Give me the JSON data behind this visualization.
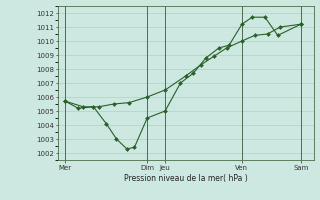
{
  "title": "Pression niveau de la mer( hPa )",
  "ylim": [
    1001.5,
    1012.5
  ],
  "yticks": [
    1002,
    1003,
    1004,
    1005,
    1006,
    1007,
    1008,
    1009,
    1010,
    1011,
    1012
  ],
  "bg_color": "#cce8e0",
  "grid_color": "#aaccbb",
  "line_color": "#2a5f2a",
  "xlim": [
    0,
    10
  ],
  "xtick_positions": [
    0.3,
    3.5,
    4.2,
    7.2,
    9.5
  ],
  "xtick_labels": [
    "Mer",
    "Dim",
    "Jeu",
    "Ven",
    "Sam"
  ],
  "vline_positions": [
    0.3,
    3.5,
    4.2,
    7.2,
    9.5
  ],
  "line1_x": [
    0.3,
    0.8,
    1.4,
    1.9,
    2.3,
    2.7,
    3.0,
    3.5,
    4.2,
    4.8,
    5.3,
    5.8,
    6.3,
    6.7,
    7.2,
    7.6,
    8.1,
    8.6,
    9.5
  ],
  "line1_y": [
    1005.7,
    1005.2,
    1005.3,
    1004.1,
    1003.0,
    1002.3,
    1002.4,
    1004.5,
    1005.0,
    1007.0,
    1007.7,
    1008.8,
    1009.5,
    1009.7,
    1011.2,
    1011.7,
    1011.7,
    1010.4,
    1011.2
  ],
  "line2_x": [
    0.3,
    1.0,
    1.6,
    2.2,
    2.8,
    3.5,
    4.2,
    5.0,
    5.6,
    6.1,
    6.6,
    7.2,
    7.7,
    8.2,
    8.7,
    9.5
  ],
  "line2_y": [
    1005.7,
    1005.3,
    1005.3,
    1005.5,
    1005.6,
    1006.0,
    1006.5,
    1007.5,
    1008.3,
    1008.9,
    1009.5,
    1010.0,
    1010.4,
    1010.5,
    1011.0,
    1011.2
  ]
}
